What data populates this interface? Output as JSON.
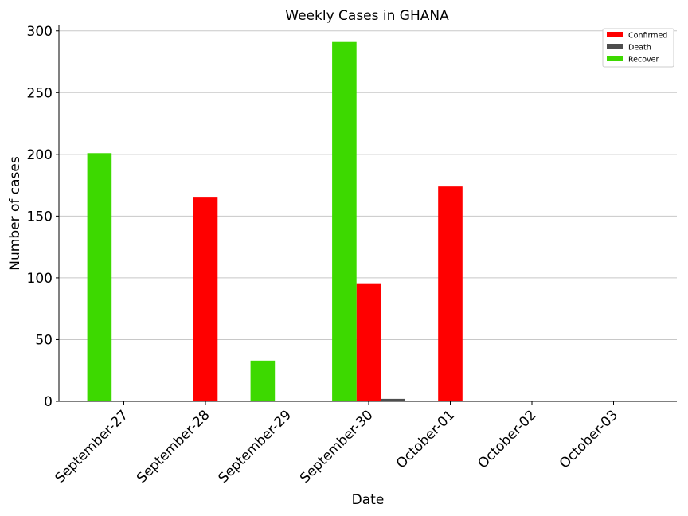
{
  "chart_data": {
    "type": "bar",
    "title": "Weekly Cases in GHANA",
    "xlabel": "Date",
    "ylabel": "Number of cases",
    "categories": [
      "September-27",
      "September-28",
      "September-29",
      "September-30",
      "October-01",
      "October-02",
      "October-03"
    ],
    "ylim": [
      0,
      305
    ],
    "yticks": [
      0,
      50,
      100,
      150,
      200,
      250,
      300
    ],
    "grid": "horizontal",
    "legend_position": "top-right",
    "series": [
      {
        "name": "Confirmed",
        "color": "#ff0000",
        "values": [
          0,
          165,
          0,
          95,
          174,
          0,
          0
        ]
      },
      {
        "name": "Death",
        "color": "#4d4d4d",
        "values": [
          0,
          0,
          0,
          2,
          0,
          0,
          0
        ]
      },
      {
        "name": "Recover",
        "color": "#3dd900",
        "values": [
          201,
          0,
          33,
          291,
          0,
          0,
          0
        ]
      }
    ]
  }
}
